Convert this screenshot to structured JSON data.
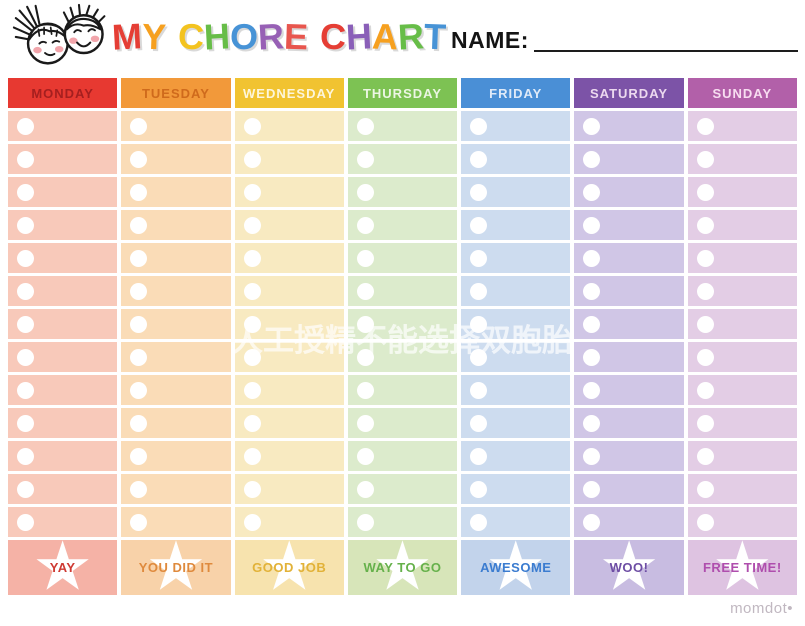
{
  "title": {
    "text": "MY CHORE CHART",
    "letters": [
      {
        "char": "M",
        "color": "#e53e35"
      },
      {
        "char": "Y",
        "color": "#f6a01f"
      },
      {
        "char": " "
      },
      {
        "char": "C",
        "color": "#f3c320"
      },
      {
        "char": "H",
        "color": "#67bd48"
      },
      {
        "char": "O",
        "color": "#4793d6"
      },
      {
        "char": "R",
        "color": "#9760b5"
      },
      {
        "char": "E",
        "color": "#e8564e"
      },
      {
        "char": " "
      },
      {
        "char": "C",
        "color": "#e53e35"
      },
      {
        "char": "H",
        "color": "#8a5fb8"
      },
      {
        "char": "A",
        "color": "#f6a01f"
      },
      {
        "char": "R",
        "color": "#67bd48"
      },
      {
        "char": "T",
        "color": "#4793d6"
      }
    ]
  },
  "name_field": {
    "label": "NAME:",
    "value": ""
  },
  "week": {
    "rows": 13,
    "days": [
      {
        "label": "MONDAY",
        "header_bg": "#e73931",
        "header_fg": "#a51f1f",
        "cell_bg": "#f8c9ba",
        "reward_bg": "#f5b2a6",
        "reward_label": "YAY",
        "reward_fg": "#ce3a33"
      },
      {
        "label": "TUESDAY",
        "header_bg": "#f2993a",
        "header_fg": "#cf6a1c",
        "cell_bg": "#fadcb7",
        "reward_bg": "#f8d2a9",
        "reward_label": "YOU DID IT",
        "reward_fg": "#df8a3d"
      },
      {
        "label": "WEDNESDAY",
        "header_bg": "#f1c331",
        "header_fg": "#fdf6dc",
        "cell_bg": "#f8eac1",
        "reward_bg": "#f7e3ae",
        "reward_label": "GOOD JOB",
        "reward_fg": "#e2b238"
      },
      {
        "label": "THURSDAY",
        "header_bg": "#7dc253",
        "header_fg": "#ecf6e4",
        "cell_bg": "#dcebcc",
        "reward_bg": "#d7e5b9",
        "reward_label": "WAY TO GO",
        "reward_fg": "#66b14b"
      },
      {
        "label": "FRIDAY",
        "header_bg": "#4a8fd6",
        "header_fg": "#dfeaf8",
        "cell_bg": "#cddcef",
        "reward_bg": "#c2d3eb",
        "reward_label": "AWESOME",
        "reward_fg": "#3b7cd0"
      },
      {
        "label": "SATURDAY",
        "header_bg": "#7c53a7",
        "header_fg": "#ecd9ef",
        "cell_bg": "#d0c6e6",
        "reward_bg": "#c8bce1",
        "reward_label": "WOO!",
        "reward_fg": "#6e4ea4"
      },
      {
        "label": "SUNDAY",
        "header_bg": "#b260a9",
        "header_fg": "#f8ddf1",
        "cell_bg": "#e3cde5",
        "reward_bg": "#dec3e1",
        "reward_label": "FREE TIME!",
        "reward_fg": "#af4ead"
      }
    ]
  },
  "icons": {
    "kids_logo": "two-kids-faces",
    "checkbox": "empty-circle",
    "reward_star": "star",
    "star_glyph": "★"
  },
  "watermark": {
    "text": "人工授精不能选择双胞胎"
  },
  "brand": {
    "text": "momdot•"
  }
}
